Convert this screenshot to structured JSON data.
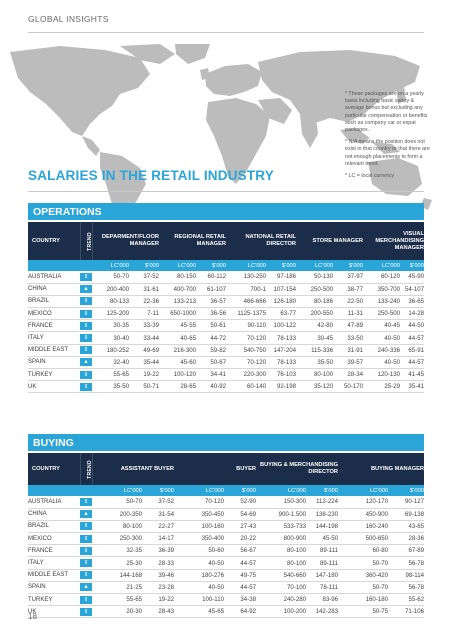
{
  "header": {
    "label": "GLOBAL INSIGHTS"
  },
  "notes": [
    "* These packages are on a yearly basis including basic salary & average bonus but excluding any particular compensation or benefits such as company car or expat packages.",
    "* N/A means the position does not exist in that country or that there are not enough placements to form a relevant trend.",
    "* LC = local currency"
  ],
  "title": "SALARIES IN THE RETAIL INDUSTRY",
  "colors": {
    "accent": "#2aa5d8",
    "header_dark": "#1c2d4a",
    "map_gray": "#b9b9b9"
  },
  "icons": {
    "up": "trend-up-icon",
    "flat": "trend-flat-icon"
  },
  "operations": {
    "section_title": "OPERATIONS",
    "country_header": "COUNTRY",
    "trend_header": "TREND",
    "roles": [
      "DEPARMENT/FLOOR MANAGER",
      "REGIONAL RETAIL MANAGER",
      "NATIONAL RETAIL DIRECTOR",
      "STORE MANAGER",
      "VISUAL MERCHANDISING MANAGER"
    ],
    "units": [
      "LC'000",
      "$'000",
      "LC'000",
      "$'000",
      "LC'000",
      "$'000",
      "LC'000",
      "$'000",
      "LC'000",
      "$'000"
    ],
    "rows": [
      {
        "country": "AUSTRALIA",
        "trend": "flat",
        "values": [
          "50-70",
          "37-52",
          "80-150",
          "60-112",
          "130-250",
          "97-186",
          "50-130",
          "37-97",
          "60-120",
          "45-90"
        ]
      },
      {
        "country": "CHINA",
        "trend": "up",
        "values": [
          "200-400",
          "31-61",
          "400-700",
          "61-107",
          "700-1",
          "107-154",
          "250-500",
          "38-77",
          "350-700",
          "54-107"
        ]
      },
      {
        "country": "BRAZIL",
        "trend": "flat",
        "values": [
          "80-133",
          "22-36",
          "133-213",
          "36-57",
          "466-666",
          "126-180",
          "80-186",
          "22-50",
          "133-240",
          "36-65"
        ]
      },
      {
        "country": "MEXICO",
        "trend": "flat",
        "values": [
          "125-200",
          "7-11",
          "650-1000",
          "36-56",
          "1125-1375",
          "63-77",
          "200-550",
          "11-31",
          "250-500",
          "14-28"
        ]
      },
      {
        "country": "FRANCE",
        "trend": "flat",
        "values": [
          "30-35",
          "33-39",
          "45-55",
          "50-61",
          "90-110",
          "100-122",
          "42-80",
          "47-89",
          "40-45",
          "44-50"
        ]
      },
      {
        "country": "ITALY",
        "trend": "flat",
        "values": [
          "30-40",
          "33-44",
          "40-65",
          "44-72",
          "70-120",
          "78-133",
          "30-45",
          "33-50",
          "40-50",
          "44-57"
        ]
      },
      {
        "country": "MIDDLE EAST",
        "trend": "flat",
        "values": [
          "180-252",
          "49-69",
          "216-300",
          "59-82",
          "540-750",
          "147-204",
          "115-336",
          "31-91",
          "240-336",
          "65-91"
        ]
      },
      {
        "country": "SPAIN",
        "trend": "up",
        "values": [
          "32-40",
          "35-44",
          "45-60",
          "50-67",
          "70-120",
          "78-133",
          "35-50",
          "39-57",
          "40-50",
          "44-57"
        ]
      },
      {
        "country": "TURKEY",
        "trend": "flat",
        "values": [
          "55-65",
          "19-22",
          "100-120",
          "34-41",
          "220-300",
          "76-103",
          "80-100",
          "28-34",
          "120-130",
          "41-45"
        ]
      },
      {
        "country": "UK",
        "trend": "flat",
        "values": [
          "35-50",
          "50-71",
          "28-65",
          "40-92",
          "60-140",
          "92-198",
          "35-120",
          "50-170",
          "25-29",
          "35-41"
        ]
      }
    ]
  },
  "buying": {
    "section_title": "BUYING",
    "country_header": "COUNTRY",
    "trend_header": "TREND",
    "roles": [
      "ASSISTANT BUYER",
      "BUYER",
      "BUYING & MERCHANDISING DIRECTOR",
      "BUYING MANAGER"
    ],
    "units": [
      "LC'000",
      "$'000",
      "LC'000",
      "$'000",
      "LC'000",
      "$'000",
      "LC'000",
      "$'000"
    ],
    "rows": [
      {
        "country": "AUSTRALIA",
        "trend": "flat",
        "values": [
          "50-70",
          "37-52",
          "70-120",
          "52-90",
          "150-300",
          "112-224",
          "120-170",
          "90-127"
        ]
      },
      {
        "country": "CHINA",
        "trend": "up",
        "values": [
          "200-350",
          "31-54",
          "350-450",
          "54-69",
          "900-1.500",
          "138-230",
          "450-900",
          "69-138"
        ]
      },
      {
        "country": "BRAZIL",
        "trend": "flat",
        "values": [
          "80-100",
          "22-27",
          "100-160",
          "27-43",
          "533-733",
          "144-198",
          "160-240",
          "43-65"
        ]
      },
      {
        "country": "MEXICO",
        "trend": "flat",
        "values": [
          "250-300",
          "14-17",
          "350-400",
          "20-22",
          "800-900",
          "45-50",
          "500-650",
          "28-36"
        ]
      },
      {
        "country": "FRANCE",
        "trend": "flat",
        "values": [
          "32-35",
          "36-39",
          "50-60",
          "56-67",
          "80-100",
          "89-111",
          "60-80",
          "67-89"
        ]
      },
      {
        "country": "ITALY",
        "trend": "flat",
        "values": [
          "25-30",
          "28-33",
          "40-50",
          "44-57",
          "80-100",
          "89-111",
          "50-70",
          "56-78"
        ]
      },
      {
        "country": "MIDDLE EAST",
        "trend": "flat",
        "values": [
          "144-168",
          "39-46",
          "180-276",
          "49-75",
          "540-660",
          "147-180",
          "360-420",
          "98-114"
        ]
      },
      {
        "country": "SPAIN",
        "trend": "up",
        "values": [
          "21-25",
          "23-28",
          "40-50",
          "44-57",
          "70-100",
          "78-111",
          "50-70",
          "56-78"
        ]
      },
      {
        "country": "TURKEY",
        "trend": "flat",
        "values": [
          "55-65",
          "19-22",
          "100-110",
          "34-38",
          "240-280",
          "83-96",
          "160-180",
          "55-62"
        ]
      },
      {
        "country": "UK",
        "trend": "flat",
        "values": [
          "20-30",
          "28-43",
          "45-65",
          "64-92",
          "100-200",
          "142-283",
          "50-75",
          "71-106"
        ]
      }
    ]
  },
  "page_number": "18"
}
